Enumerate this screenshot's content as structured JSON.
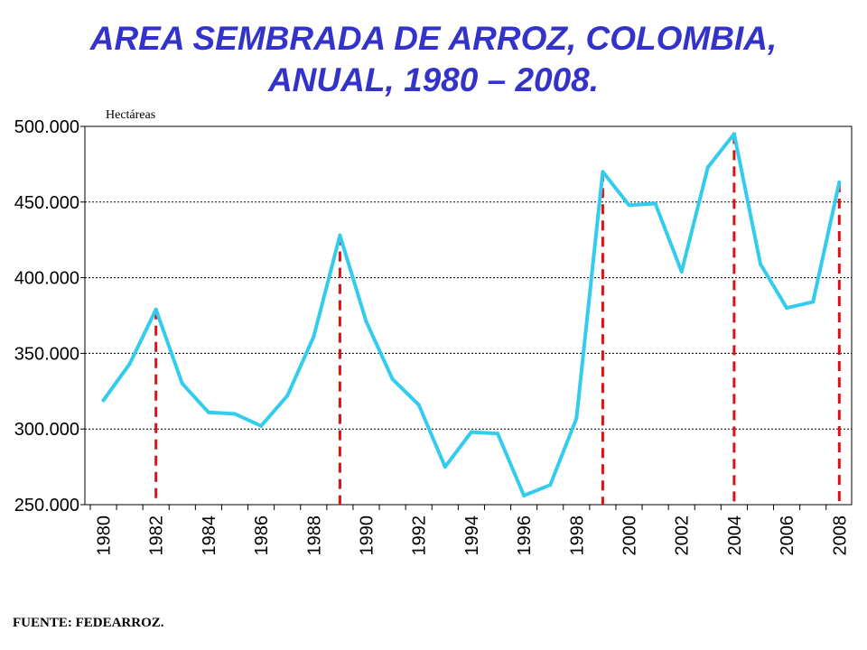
{
  "title_line1": "AREA SEMBRADA DE ARROZ, COLOMBIA,",
  "title_line2": "ANUAL, 1980 – 2008.",
  "source": "FUENTE: FEDEARROZ.",
  "colors": {
    "title": "#3333cc",
    "line": "#33ccee",
    "markers": "#dd1111"
  },
  "chart_data": {
    "type": "line",
    "title": "AREA SEMBRADA DE ARROZ, COLOMBIA, ANUAL, 1980 – 2008.",
    "ylabel": "Hectáreas",
    "xlabel": "",
    "ylim": [
      250000,
      500000
    ],
    "yticks": [
      250000,
      300000,
      350000,
      400000,
      450000,
      500000
    ],
    "ytick_labels": [
      "250.000",
      "300.000",
      "350.000",
      "400.000",
      "450.000",
      "500.000"
    ],
    "xtick_labels": [
      "1980",
      "1982",
      "1984",
      "1986",
      "1988",
      "1990",
      "1992",
      "1994",
      "1996",
      "1998",
      "2000",
      "2002",
      "2004",
      "2006",
      "2008"
    ],
    "grid": "horizontal dotted",
    "x": [
      1980,
      1981,
      1982,
      1983,
      1984,
      1985,
      1986,
      1987,
      1988,
      1989,
      1990,
      1991,
      1992,
      1993,
      1994,
      1995,
      1996,
      1997,
      1998,
      1999,
      2000,
      2001,
      2002,
      2003,
      2004,
      2005,
      2006,
      2007,
      2008
    ],
    "series": [
      {
        "values": [
          319000,
          343000,
          379000,
          330000,
          311000,
          310000,
          302000,
          322000,
          361000,
          428000,
          371000,
          333000,
          316000,
          275000,
          298000,
          297000,
          256000,
          263000,
          307000,
          470000,
          448000,
          449000,
          404000,
          473000,
          495000,
          409000,
          380000,
          384000,
          463000
        ]
      }
    ],
    "peak_markers": [
      1982,
      1989,
      1999,
      2004,
      2008
    ]
  }
}
